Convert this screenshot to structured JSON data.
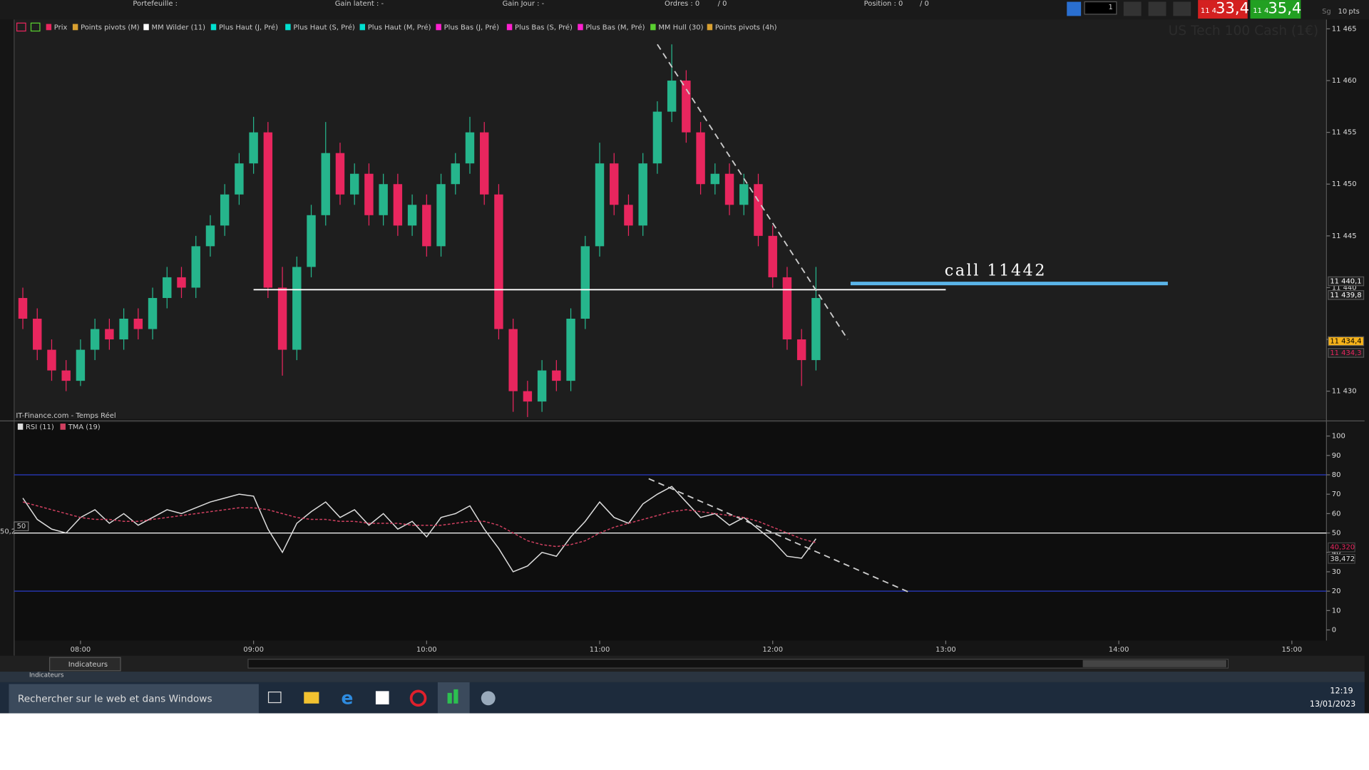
{
  "chart_data": [
    {
      "type": "candlestick",
      "title": "US Tech 100 Cash (1€)",
      "source": "IT-Finance.com - Temps Réel",
      "x": [
        "07:40",
        "07:45",
        "07:50",
        "07:55",
        "08:00",
        "08:05",
        "08:10",
        "08:15",
        "08:20",
        "08:25",
        "08:30",
        "08:35",
        "08:40",
        "08:45",
        "08:50",
        "08:55",
        "09:00",
        "09:05",
        "09:10",
        "09:15",
        "09:20",
        "09:25",
        "09:30",
        "09:35",
        "09:40",
        "09:45",
        "09:50",
        "09:55",
        "10:00",
        "10:05",
        "10:10",
        "10:15",
        "10:20",
        "10:25",
        "10:30",
        "10:35",
        "10:40",
        "10:45",
        "10:50",
        "10:55",
        "11:00",
        "11:05",
        "11:10",
        "11:15",
        "11:20",
        "11:25",
        "11:30",
        "11:35",
        "11:40",
        "11:45",
        "11:50",
        "11:55",
        "12:00",
        "12:05",
        "12:10",
        "12:15"
      ],
      "open": [
        11439,
        11437,
        11434,
        11432,
        11431,
        11434,
        11436,
        11435,
        11437,
        11436,
        11439,
        11441,
        11440,
        11444,
        11446,
        11449,
        11452,
        11455,
        11440,
        11434,
        11442,
        11447,
        11453,
        11449,
        11451,
        11447,
        11450,
        11446,
        11448,
        11444,
        11450,
        11452,
        11455,
        11449,
        11436,
        11430,
        11429,
        11432,
        11431,
        11437,
        11444,
        11452,
        11448,
        11446,
        11452,
        11457,
        11460,
        11455,
        11450,
        11451,
        11448,
        11450,
        11445,
        11441,
        11435,
        11433
      ],
      "high": [
        11440,
        11438,
        11435,
        11433,
        11435,
        11437,
        11437,
        11438,
        11438,
        11440,
        11442,
        11442,
        11445,
        11447,
        11450,
        11453,
        11456.5,
        11456,
        11442,
        11443,
        11448,
        11456,
        11454,
        11452,
        11452,
        11451,
        11451,
        11449,
        11449,
        11451,
        11453,
        11456.5,
        11456,
        11450,
        11437,
        11431,
        11433,
        11433,
        11438,
        11445,
        11454,
        11453,
        11449,
        11453,
        11458,
        11463.5,
        11461,
        11456,
        11452,
        11452,
        11451,
        11451,
        11446,
        11442,
        11436,
        11442
      ],
      "low": [
        11436,
        11433,
        11431,
        11430,
        11430.5,
        11433,
        11434,
        11434,
        11435,
        11435,
        11438,
        11439,
        11439,
        11443,
        11445,
        11448,
        11451,
        11439,
        11431.5,
        11433,
        11441,
        11446,
        11448,
        11448,
        11446,
        11446,
        11445,
        11445,
        11443,
        11443,
        11449,
        11451,
        11448,
        11435,
        11428,
        11427.5,
        11428,
        11430,
        11430,
        11436,
        11443,
        11447,
        11445,
        11445,
        11451,
        11456,
        11454,
        11449,
        11449,
        11447,
        11447,
        11444,
        11440,
        11434,
        11430.5,
        11432
      ],
      "close": [
        11437,
        11434,
        11432,
        11431,
        11434,
        11436,
        11435,
        11437,
        11436,
        11439,
        11441,
        11440,
        11444,
        11446,
        11449,
        11452,
        11455,
        11440,
        11434,
        11442,
        11447,
        11453,
        11449,
        11451,
        11447,
        11450,
        11446,
        11448,
        11444,
        11450,
        11452,
        11455,
        11449,
        11436,
        11430,
        11429,
        11432,
        11431,
        11437,
        11444,
        11452,
        11448,
        11446,
        11452,
        11457,
        11460,
        11455,
        11450,
        11451,
        11448,
        11450,
        11445,
        11441,
        11435,
        11433,
        11439
      ],
      "up_color": "#26b58c",
      "down_color": "#e8265e",
      "xlim": [
        "07:37",
        "15:12"
      ],
      "ylim": [
        11427.3,
        11465.9
      ],
      "yticks": [
        {
          "value": 11430,
          "label": "11 430"
        },
        {
          "value": 11435,
          "label": "11 435"
        },
        {
          "value": 11440,
          "label": "11 440"
        },
        {
          "value": 11445,
          "label": "11 445"
        },
        {
          "value": 11450,
          "label": "11 450"
        },
        {
          "value": 11455,
          "label": "11 455"
        },
        {
          "value": 11460,
          "label": "11 460"
        },
        {
          "value": 11465,
          "label": "11 465"
        }
      ],
      "lines": [
        {
          "x": [
            "09:00",
            "13:00"
          ],
          "y": [
            11439.8,
            11439.8
          ],
          "color": "#ffffff",
          "dash": false
        },
        {
          "x": [
            "12:27",
            "14:17"
          ],
          "y": [
            11440.4,
            11440.4
          ],
          "color": "#5ab4e8",
          "dash": false
        },
        {
          "x": [
            "11:20",
            "12:26"
          ],
          "y": [
            11463.5,
            11435
          ],
          "color": "#cccccc",
          "dash": true
        }
      ],
      "annotation": "call 11442",
      "price_labels": [
        {
          "value": 11440.1,
          "label": "11 440,1",
          "color": "#ffffff",
          "bg": "#202020"
        },
        {
          "value": 11439.8,
          "label": "11 439,8",
          "color": "#ffffff",
          "bg": "#202020"
        },
        {
          "value": 11434.4,
          "label": "11 434,4",
          "color": "#000000",
          "bg": "#f5b21a"
        },
        {
          "value": 11434.3,
          "label": "11 434,3",
          "color": "#e8265e",
          "bg": "#202020"
        }
      ],
      "legend": [
        {
          "label": "Prix",
          "color": "#e8265e"
        },
        {
          "label": "Points pivots (M)",
          "color": "#d9a030"
        },
        {
          "label": "MM Wilder (11)",
          "color": "#ffffff"
        },
        {
          "label": "Plus Haut (J, Pré)",
          "color": "#00e0d0"
        },
        {
          "label": "Plus Haut (S, Pré)",
          "color": "#00e0d0"
        },
        {
          "label": "Plus Haut (M, Pré)",
          "color": "#00e0d0"
        },
        {
          "label": "Plus Bas (J, Pré)",
          "color": "#ff20d0"
        },
        {
          "label": "Plus Bas (S, Pré)",
          "color": "#ff20d0"
        },
        {
          "label": "Plus Bas (M, Pré)",
          "color": "#ff20d0"
        },
        {
          "label": "MM Hull (30)",
          "color": "#5ad030"
        },
        {
          "label": "Points pivots (4h)",
          "color": "#d9a030"
        }
      ]
    },
    {
      "type": "line",
      "x": [
        "07:40",
        "07:45",
        "07:50",
        "07:55",
        "08:00",
        "08:05",
        "08:10",
        "08:15",
        "08:20",
        "08:25",
        "08:30",
        "08:35",
        "08:40",
        "08:45",
        "08:50",
        "08:55",
        "09:00",
        "09:05",
        "09:10",
        "09:15",
        "09:20",
        "09:25",
        "09:30",
        "09:35",
        "09:40",
        "09:45",
        "09:50",
        "09:55",
        "10:00",
        "10:05",
        "10:10",
        "10:15",
        "10:20",
        "10:25",
        "10:30",
        "10:35",
        "10:40",
        "10:45",
        "10:50",
        "10:55",
        "11:00",
        "11:05",
        "11:10",
        "11:15",
        "11:20",
        "11:25",
        "11:30",
        "11:35",
        "11:40",
        "11:45",
        "11:50",
        "11:55",
        "12:00",
        "12:05",
        "12:10",
        "12:15"
      ],
      "series": [
        {
          "name": "RSI (11)",
          "color": "#dddddd",
          "dash": false,
          "values": [
            68,
            57,
            52,
            50,
            58,
            62,
            55,
            60,
            54,
            58,
            62,
            60,
            63,
            66,
            68,
            70,
            69,
            52,
            40,
            55,
            61,
            66,
            58,
            62,
            54,
            60,
            52,
            56,
            48,
            58,
            60,
            64,
            52,
            42,
            30,
            33,
            40,
            38,
            48,
            56,
            66,
            58,
            55,
            65,
            70,
            74,
            66,
            58,
            60,
            54,
            58,
            52,
            46,
            38,
            37,
            47
          ]
        },
        {
          "name": "TMA (19)",
          "color": "#d04060",
          "dash": true,
          "values": [
            66,
            64,
            62,
            60,
            58,
            57,
            57,
            56,
            56,
            57,
            58,
            59,
            60,
            61,
            62,
            63,
            63,
            62,
            60,
            58,
            57,
            57,
            56,
            56,
            55,
            55,
            55,
            54,
            54,
            54,
            55,
            56,
            56,
            54,
            50,
            46,
            44,
            43,
            44,
            46,
            50,
            53,
            55,
            57,
            59,
            61,
            62,
            61,
            60,
            59,
            58,
            56,
            53,
            50,
            47,
            45
          ]
        }
      ],
      "xlim": [
        "07:37",
        "15:12"
      ],
      "ylim": [
        -5.5,
        106.9
      ],
      "yticks": [
        0,
        10,
        20,
        30,
        40,
        50,
        60,
        70,
        80,
        90,
        100
      ],
      "xticks": [
        "08:00",
        "09:00",
        "10:00",
        "11:00",
        "12:00",
        "13:00",
        "14:00",
        "15:00"
      ],
      "levels": [
        {
          "value": 80,
          "color": "#2a3cc8"
        },
        {
          "value": 50,
          "color": "#ffffff"
        },
        {
          "value": 20,
          "color": "#2a3cc8"
        }
      ],
      "lines": [
        {
          "x": [
            "11:17",
            "12:48"
          ],
          "y": [
            78,
            19
          ],
          "color": "#cccccc",
          "dash": true
        }
      ],
      "value_labels": [
        {
          "value": 40.32,
          "label": "40,320",
          "color": "#e8265e"
        },
        {
          "value": 38.472,
          "label": "38,472",
          "color": "#dddddd"
        }
      ],
      "left_labels": [
        "50,2",
        "50"
      ]
    }
  ],
  "ui": {
    "portfolio": "Portefeuille :",
    "latent": "Gain latent : -",
    "day": "Gain Jour : -",
    "orders": "Ordres : 0",
    "orders_count": "/ 0",
    "position": "Position : 0",
    "position_count": "/ 0",
    "qty": "1",
    "sell_prefix": "11 4",
    "sell": "33,4",
    "buy_prefix": "11 4",
    "buy": "35,4",
    "sg": "Sg",
    "pts_value": "10",
    "pts": "pts",
    "indicators": "Indicateurs",
    "indicators2": "Indicateurs",
    "search": "Rechercher sur le web et dans Windows",
    "time": "12:19",
    "date": "13/01/2023"
  }
}
